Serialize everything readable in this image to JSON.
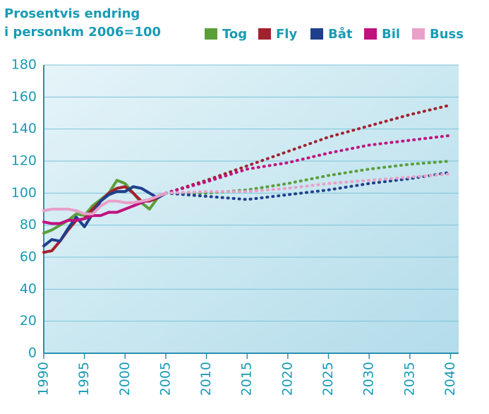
{
  "chart_data": {
    "type": "line",
    "title": [
      "Prosentvis endring",
      "i personkm  2006=100"
    ],
    "x": [
      1990,
      1991,
      1992,
      1993,
      1994,
      1995,
      1996,
      1997,
      1998,
      1999,
      2000,
      2001,
      2002,
      2003,
      2004,
      2005,
      2010,
      2015,
      2020,
      2025,
      2030,
      2035,
      2040
    ],
    "series": [
      {
        "name": "Tog",
        "color": "#5a9e3a",
        "values": [
          75,
          77,
          80,
          83,
          87,
          86,
          92,
          96,
          100,
          108,
          106,
          100,
          94,
          90,
          97,
          100,
          null,
          null,
          null,
          null,
          null,
          null,
          null
        ],
        "projection": [
          null,
          null,
          null,
          null,
          null,
          null,
          null,
          null,
          null,
          null,
          null,
          null,
          null,
          null,
          null,
          100,
          100,
          102,
          106,
          111,
          115,
          118,
          120
        ]
      },
      {
        "name": "Fly",
        "color": "#a3202e",
        "values": [
          63,
          64,
          70,
          77,
          83,
          84,
          90,
          95,
          100,
          103,
          104,
          100,
          95,
          95,
          97,
          100,
          null,
          null,
          null,
          null,
          null,
          null,
          null
        ],
        "projection": [
          null,
          null,
          null,
          null,
          null,
          null,
          null,
          null,
          null,
          null,
          null,
          null,
          null,
          null,
          null,
          100,
          108,
          117,
          126,
          135,
          142,
          149,
          155
        ]
      },
      {
        "name": "Båt",
        "color": "#1f3f8c",
        "values": [
          67,
          71,
          70,
          78,
          85,
          79,
          87,
          95,
          99,
          101,
          101,
          104,
          103,
          100,
          97,
          100,
          null,
          null,
          null,
          null,
          null,
          null,
          null
        ],
        "projection": [
          null,
          null,
          null,
          null,
          null,
          null,
          null,
          null,
          null,
          null,
          null,
          null,
          null,
          null,
          null,
          100,
          98,
          96,
          99,
          102,
          106,
          109,
          113
        ]
      },
      {
        "name": "Bil",
        "color": "#c0127f",
        "values": [
          82,
          81,
          81,
          83,
          83,
          84,
          86,
          86,
          88,
          88,
          90,
          92,
          94,
          96,
          98,
          100,
          null,
          null,
          null,
          null,
          null,
          null,
          null
        ],
        "projection": [
          null,
          null,
          null,
          null,
          null,
          null,
          null,
          null,
          null,
          null,
          null,
          null,
          null,
          null,
          null,
          100,
          107,
          115,
          119,
          125,
          130,
          133,
          136
        ]
      },
      {
        "name": "Buss",
        "color": "#e8a0c8",
        "values": [
          89,
          90,
          90,
          90,
          89,
          87,
          87,
          92,
          95,
          95,
          94,
          94,
          95,
          96,
          98,
          100,
          null,
          null,
          null,
          null,
          null,
          null,
          null
        ],
        "projection": [
          null,
          null,
          null,
          null,
          null,
          null,
          null,
          null,
          null,
          null,
          null,
          null,
          null,
          null,
          null,
          100,
          101,
          101,
          103,
          106,
          108,
          110,
          112
        ]
      }
    ],
    "xlim": [
      1990,
      2041
    ],
    "xticks": [
      1990,
      1995,
      2000,
      2005,
      2010,
      2015,
      2020,
      2025,
      2030,
      2035,
      2040
    ],
    "ylim": [
      0,
      180
    ],
    "yticks": [
      0,
      20,
      40,
      60,
      80,
      100,
      120,
      140,
      160,
      180
    ],
    "grid": true
  }
}
